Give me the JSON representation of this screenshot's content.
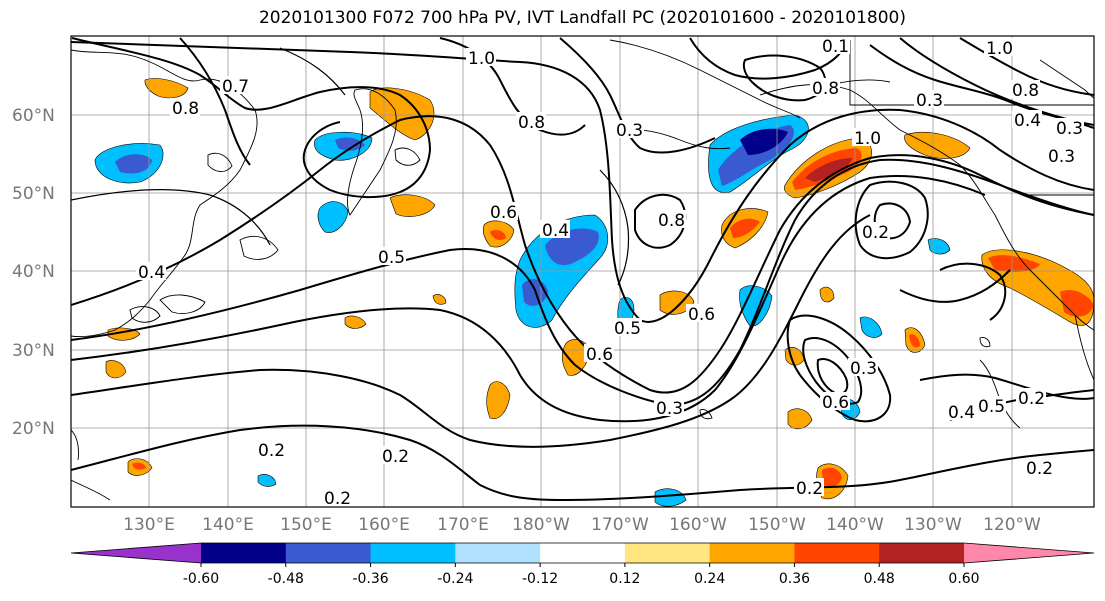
{
  "title": "2020101300 F072 700 hPa PV, IVT Landfall PC (2020101600 - 2020101800)",
  "map": {
    "lat_labels": [
      "60°N",
      "50°N",
      "40°N",
      "30°N",
      "20°N"
    ],
    "lon_labels": [
      "130°E",
      "140°E",
      "150°E",
      "160°E",
      "170°E",
      "180°W",
      "170°W",
      "160°W",
      "150°W",
      "140°W",
      "130°W",
      "120°W"
    ],
    "contour_labels": [
      "1.0",
      "0.7",
      "0.8",
      "0.8",
      "0.3",
      "0.6",
      "0.5",
      "0.4",
      "0.6",
      "0.8",
      "1.0",
      "0.8",
      "0.1",
      "0.2",
      "0.3",
      "0.4",
      "0.5",
      "0.6",
      "0.3",
      "0.2",
      "0.2",
      "0.4",
      "0.5",
      "0.2",
      "0.2",
      "0.2",
      "0.2",
      "0.6",
      "0.3",
      "1.0",
      "0.8",
      "0.4",
      "0.3",
      "0.3"
    ]
  },
  "colorbar": {
    "tick_labels": [
      "-0.60",
      "-0.48",
      "-0.36",
      "-0.24",
      "-0.12",
      "0.12",
      "0.24",
      "0.36",
      "0.48",
      "0.60"
    ],
    "colors": [
      "#9932cc",
      "#00008b",
      "#3a5bd0",
      "#00bfff",
      "#b0e2ff",
      "#ffffff",
      "#ffe680",
      "#ffa500",
      "#ff4500",
      "#b22222",
      "#ff88aa"
    ]
  }
}
